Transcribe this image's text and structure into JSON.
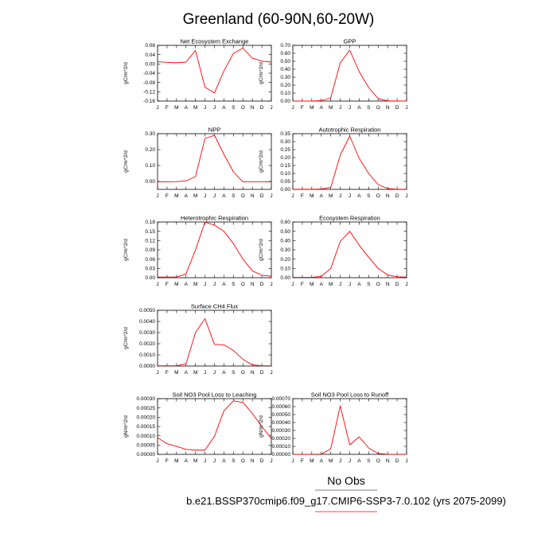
{
  "page": {
    "title": "Greenland (60-90N,60-20W)",
    "footer": {
      "obs_label": "No Obs",
      "case_label": "b.e21.BSSP370cmip6.f09_g17.CMIP6-SSP3-7.0.102 (yrs 2075-2099)",
      "line_color": "#ff0000",
      "obs_line_color": "#000000"
    }
  },
  "chart_data": [
    {
      "type": "line",
      "title": "Net Ecosystem Exchange",
      "ylabel": "gC/m^2/d",
      "categories": [
        "J",
        "F",
        "M",
        "A",
        "M",
        "J",
        "J",
        "A",
        "S",
        "O",
        "N",
        "D",
        "J"
      ],
      "ylim": [
        -0.16,
        0.08
      ],
      "yticks": [
        -0.16,
        -0.12,
        -0.08,
        -0.04,
        0.0,
        0.04,
        0.08
      ],
      "ytick_labels": [
        "-0.16",
        "-0.12",
        "-0.08",
        "-0.04",
        "0.00",
        "0.04",
        "0.08"
      ],
      "series": [
        {
          "color": "#ff0000",
          "values": [
            0.01,
            0.007,
            0.005,
            0.008,
            0.058,
            -0.1,
            -0.125,
            -0.03,
            0.045,
            0.068,
            0.025,
            0.012,
            0.008
          ]
        }
      ]
    },
    {
      "type": "line",
      "title": "GPP",
      "ylabel": "gC/m^2/d",
      "categories": [
        "J",
        "F",
        "M",
        "A",
        "M",
        "J",
        "J",
        "A",
        "S",
        "O",
        "N",
        "D",
        "J"
      ],
      "ylim": [
        0,
        0.7
      ],
      "yticks": [
        0,
        0.1,
        0.2,
        0.3,
        0.4,
        0.5,
        0.6,
        0.7
      ],
      "ytick_labels": [
        "0.00",
        "0.10",
        "0.20",
        "0.30",
        "0.40",
        "0.50",
        "0.60",
        "0.70"
      ],
      "series": [
        {
          "color": "#ff0000",
          "values": [
            0.0,
            0.0,
            0.0,
            0.005,
            0.04,
            0.48,
            0.64,
            0.37,
            0.17,
            0.03,
            0.003,
            0.0,
            0.0
          ]
        }
      ]
    },
    {
      "type": "line",
      "title": "NPP",
      "ylabel": "gC/m^2/d",
      "categories": [
        "J",
        "F",
        "M",
        "A",
        "M",
        "J",
        "J",
        "A",
        "S",
        "O",
        "N",
        "D",
        "J"
      ],
      "ylim": [
        -0.05,
        0.3
      ],
      "yticks": [
        0.0,
        0.1,
        0.2,
        0.3
      ],
      "ytick_labels": [
        "0.00",
        "0.10",
        "0.20",
        "0.30"
      ],
      "series": [
        {
          "color": "#ff0000",
          "values": [
            -0.002,
            -0.002,
            -0.001,
            0.003,
            0.03,
            0.27,
            0.29,
            0.17,
            0.06,
            -0.003,
            -0.003,
            -0.003,
            -0.003
          ]
        }
      ]
    },
    {
      "type": "line",
      "title": "Autotrophic Respiration",
      "ylabel": "gC/m^2/d",
      "categories": [
        "J",
        "F",
        "M",
        "A",
        "M",
        "J",
        "J",
        "A",
        "S",
        "O",
        "N",
        "D",
        "J"
      ],
      "ylim": [
        0,
        0.35
      ],
      "yticks": [
        0,
        0.05,
        0.1,
        0.15,
        0.2,
        0.25,
        0.3,
        0.35
      ],
      "ytick_labels": [
        "0.00",
        "0.05",
        "0.10",
        "0.15",
        "0.20",
        "0.25",
        "0.30",
        "0.35"
      ],
      "series": [
        {
          "color": "#ff0000",
          "values": [
            0.001,
            0.001,
            0.001,
            0.002,
            0.012,
            0.215,
            0.335,
            0.195,
            0.1,
            0.03,
            0.005,
            0.001,
            0.001
          ]
        }
      ]
    },
    {
      "type": "line",
      "title": "Heterotrophic Respiration",
      "ylabel": "gC/m^2/d",
      "categories": [
        "J",
        "F",
        "M",
        "A",
        "M",
        "J",
        "J",
        "A",
        "S",
        "O",
        "N",
        "D",
        "J"
      ],
      "ylim": [
        0,
        0.18
      ],
      "yticks": [
        0,
        0.03,
        0.06,
        0.09,
        0.12,
        0.15,
        0.18
      ],
      "ytick_labels": [
        "0.00",
        "0.03",
        "0.06",
        "0.09",
        "0.12",
        "0.15",
        "0.18"
      ],
      "series": [
        {
          "color": "#ff0000",
          "values": [
            0.002,
            0.002,
            0.002,
            0.012,
            0.09,
            0.18,
            0.17,
            0.15,
            0.11,
            0.06,
            0.022,
            0.008,
            0.005
          ]
        }
      ]
    },
    {
      "type": "line",
      "title": "Ecosystem Respiration",
      "ylabel": "gC/m^2/d",
      "categories": [
        "J",
        "F",
        "M",
        "A",
        "M",
        "J",
        "J",
        "A",
        "S",
        "O",
        "N",
        "D",
        "J"
      ],
      "ylim": [
        0,
        0.6
      ],
      "yticks": [
        0,
        0.1,
        0.2,
        0.3,
        0.4,
        0.5,
        0.6
      ],
      "ytick_labels": [
        "0.00",
        "0.10",
        "0.20",
        "0.30",
        "0.40",
        "0.50",
        "0.60"
      ],
      "series": [
        {
          "color": "#ff0000",
          "values": [
            0.004,
            0.004,
            0.004,
            0.014,
            0.1,
            0.39,
            0.5,
            0.35,
            0.22,
            0.1,
            0.03,
            0.01,
            0.006
          ]
        }
      ]
    },
    {
      "type": "line",
      "title": "Surface CH4 Flux",
      "ylabel": "gC/m^2/d",
      "categories": [
        "J",
        "F",
        "M",
        "A",
        "M",
        "J",
        "J",
        "A",
        "S",
        "O",
        "N",
        "D",
        "J"
      ],
      "ylim": [
        0,
        0.005
      ],
      "yticks": [
        0,
        0.001,
        0.002,
        0.003,
        0.004,
        0.005
      ],
      "ytick_labels": [
        "0.0000",
        "0.0010",
        "0.0020",
        "0.0030",
        "0.0040",
        "0.0050"
      ],
      "series": [
        {
          "color": "#ff0000",
          "values": [
            2e-05,
            2e-05,
            2e-05,
            0.0002,
            0.003,
            0.00425,
            0.00195,
            0.0019,
            0.0014,
            0.0006,
            0.0001,
            3e-05,
            2e-05
          ]
        }
      ]
    },
    {
      "type": "line",
      "title": "Soil NO3 Pool Loss to Leaching",
      "ylabel": "gN/m^2/d",
      "categories": [
        "J",
        "F",
        "M",
        "A",
        "M",
        "J",
        "J",
        "A",
        "S",
        "O",
        "N",
        "D",
        "J"
      ],
      "ylim": [
        0,
        0.0003
      ],
      "yticks": [
        0,
        5e-05,
        0.0001,
        0.00015,
        0.0002,
        0.00025,
        0.0003
      ],
      "ytick_labels": [
        "0.00000",
        "0.00005",
        "0.00010",
        "0.00015",
        "0.00020",
        "0.00025",
        "0.00030"
      ],
      "series": [
        {
          "color": "#ff0000",
          "values": [
            9e-05,
            5.7e-05,
            4.3e-05,
            2.7e-05,
            2.3e-05,
            2.3e-05,
            9.7e-05,
            0.000235,
            0.000288,
            0.00028,
            0.00022,
            0.00015,
            8.5e-05
          ]
        }
      ]
    },
    {
      "type": "line",
      "title": "Soil NO3 Pool Loss to Runoff",
      "ylabel": "gN/m^2/d",
      "categories": [
        "J",
        "F",
        "M",
        "A",
        "M",
        "J",
        "J",
        "A",
        "S",
        "O",
        "N",
        "D",
        "J"
      ],
      "ylim": [
        0,
        0.0007
      ],
      "yticks": [
        0,
        0.0001,
        0.0002,
        0.0003,
        0.0004,
        0.0005,
        0.0006,
        0.0007
      ],
      "ytick_labels": [
        "0.00000",
        "0.00010",
        "0.00020",
        "0.00030",
        "0.00040",
        "0.00050",
        "0.00060",
        "0.00070"
      ],
      "series": [
        {
          "color": "#ff0000",
          "values": [
            1e-06,
            1e-06,
            1e-06,
            3e-06,
            7e-05,
            0.00061,
            0.00012,
            0.00022,
            8e-05,
            1e-05,
            2e-06,
            1e-06,
            1e-06
          ]
        }
      ]
    }
  ]
}
